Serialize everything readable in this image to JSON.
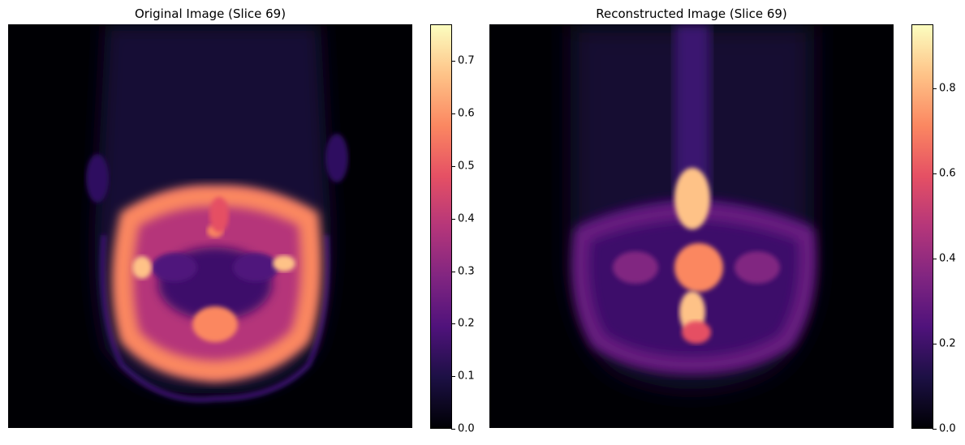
{
  "colormap": "magma",
  "colormap_stops": [
    "#000004",
    "#1c1044",
    "#4f127b",
    "#812581",
    "#b5367a",
    "#e55064",
    "#fb8761",
    "#fec287",
    "#fcfdbf"
  ],
  "panels": [
    {
      "title": "Original Image (Slice 69)",
      "colorbar": {
        "min": 0.0,
        "max": 0.77,
        "ticks": [
          "0.0",
          "0.1",
          "0.2",
          "0.3",
          "0.4",
          "0.5",
          "0.6",
          "0.7"
        ]
      }
    },
    {
      "title": "Reconstructed Image (Slice 69)",
      "colorbar": {
        "min": 0.0,
        "max": 0.95,
        "ticks": [
          "0.0",
          "0.2",
          "0.4",
          "0.6",
          "0.8"
        ]
      }
    }
  ]
}
